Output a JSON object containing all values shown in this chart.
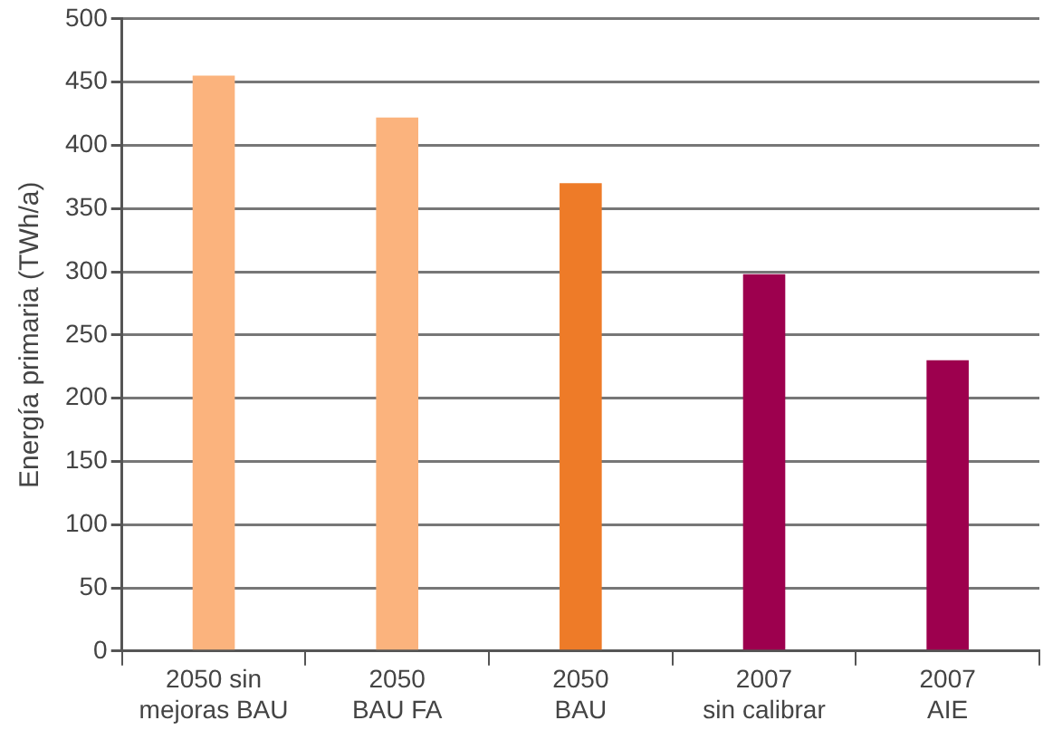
{
  "chart_data": {
    "type": "bar",
    "ylabel": "Energía primaria (TWh/a)",
    "categories": [
      "2050 sin\nmejoras BAU",
      "2050\nBAU FA",
      "2050\nBAU",
      "2007\nsin calibrar",
      "2007\nAIE"
    ],
    "values": [
      455,
      422,
      370,
      298,
      230
    ],
    "colors": [
      "#fbb37d",
      "#fbb37d",
      "#ee7b28",
      "#9d004e",
      "#9d004e"
    ],
    "ylim": [
      0,
      500
    ],
    "yticks": [
      0,
      50,
      100,
      150,
      200,
      250,
      300,
      350,
      400,
      450,
      500
    ],
    "grid": "y",
    "legend": false
  }
}
